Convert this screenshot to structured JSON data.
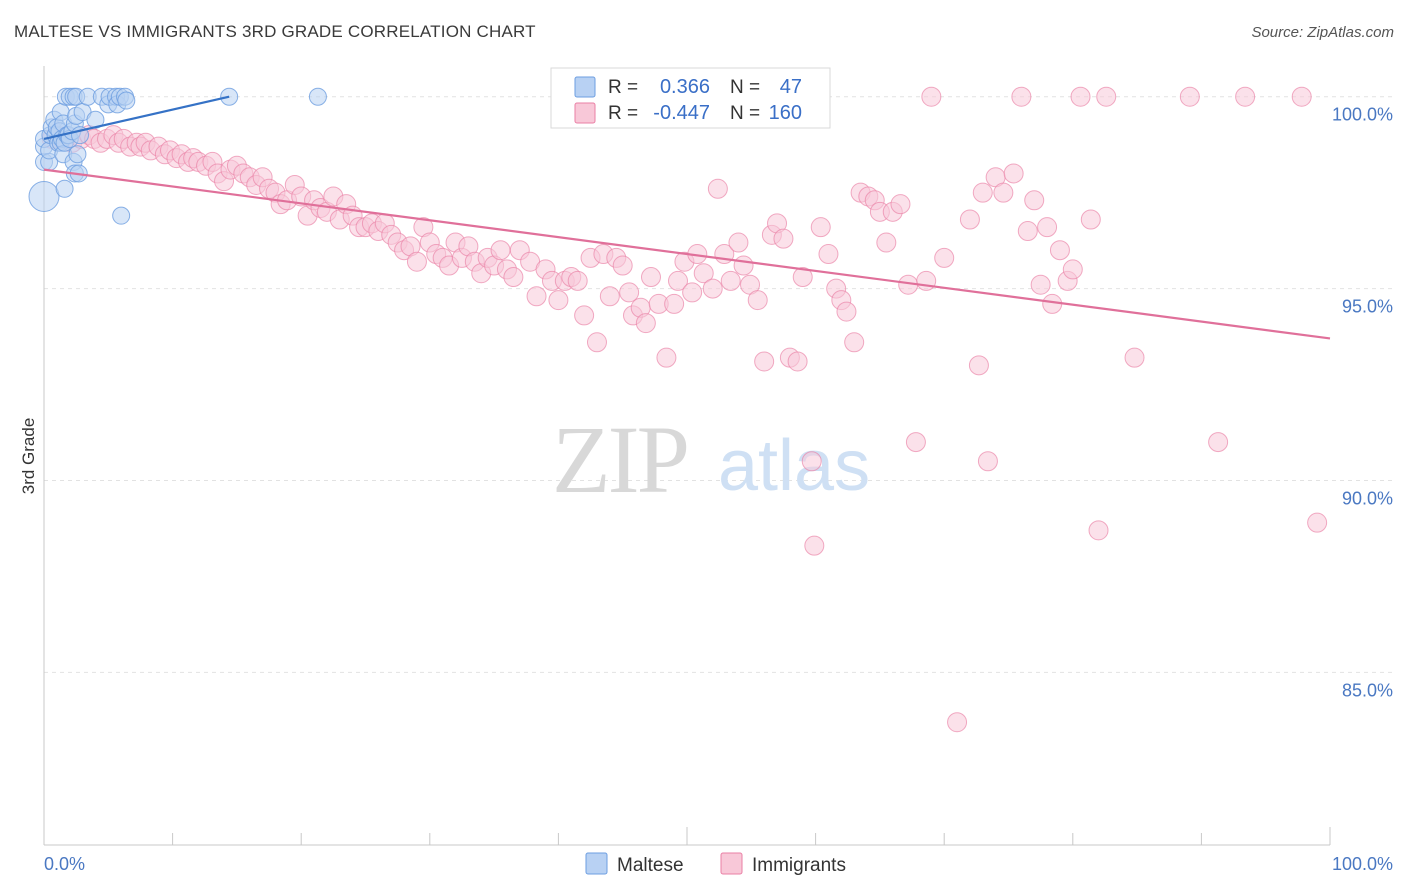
{
  "header": {
    "title": "MALTESE VS IMMIGRANTS 3RD GRADE CORRELATION CHART",
    "source": "Source: ZipAtlas.com"
  },
  "watermark": {
    "zip": "ZIP",
    "atlas": "atlas"
  },
  "colors": {
    "maltese": "#6d9ee0",
    "maltese_fill": "#b8d1f3",
    "immigrants": "#ea7fa5",
    "immigrants_fill": "#f8c8d8",
    "trend_blue": "#3572c6",
    "trend_pink": "#e0709a",
    "tick": "#4a78c2"
  },
  "legend": {
    "r_label": "R =",
    "n_label": "N =",
    "maltese": {
      "r": "0.366",
      "n": "47"
    },
    "immigrants": {
      "r": "-0.447",
      "n": "160"
    }
  },
  "chart_data": {
    "type": "scatter",
    "title": "MALTESE VS IMMIGRANTS 3RD GRADE CORRELATION CHART",
    "xlabel": "",
    "ylabel": "3rd Grade",
    "xlim": [
      0,
      100
    ],
    "ylim": [
      80.5,
      100.8
    ],
    "x_tick_labels": [
      "0.0%",
      "100.0%"
    ],
    "y_ticks": [
      {
        "value": 100,
        "label": "100.0%"
      },
      {
        "value": 95,
        "label": "95.0%"
      },
      {
        "value": 90,
        "label": "90.0%"
      },
      {
        "value": 85,
        "label": "85.0%"
      }
    ],
    "bottom_legend": [
      "Maltese",
      "Immigrants"
    ],
    "series": [
      {
        "name": "Maltese",
        "trend": {
          "x": [
            0,
            14.4
          ],
          "y": [
            98.9,
            100.0
          ]
        },
        "points": [
          [
            0.0,
            97.4,
            2
          ],
          [
            0.0,
            98.3,
            1
          ],
          [
            0.0,
            98.7,
            1
          ],
          [
            0.0,
            98.9,
            1
          ],
          [
            0.4,
            98.3,
            1
          ],
          [
            0.4,
            98.6,
            1
          ],
          [
            0.5,
            99.0,
            1
          ],
          [
            0.6,
            99.2,
            1
          ],
          [
            0.8,
            99.4,
            1
          ],
          [
            0.9,
            99.0,
            1
          ],
          [
            1.0,
            99.2,
            1
          ],
          [
            1.1,
            98.8,
            1
          ],
          [
            1.2,
            99.1,
            1
          ],
          [
            1.3,
            98.8,
            1
          ],
          [
            1.3,
            99.6,
            1
          ],
          [
            1.4,
            98.9,
            1
          ],
          [
            1.5,
            99.3,
            1
          ],
          [
            1.5,
            98.5,
            1
          ],
          [
            1.6,
            97.6,
            1
          ],
          [
            1.6,
            98.8,
            1
          ],
          [
            1.7,
            100.0,
            1
          ],
          [
            1.8,
            99.0,
            1
          ],
          [
            1.9,
            99.0,
            1
          ],
          [
            2.0,
            98.9,
            1
          ],
          [
            2.0,
            100.0,
            1
          ],
          [
            2.2,
            99.1,
            1
          ],
          [
            2.3,
            100.0,
            1
          ],
          [
            2.3,
            98.3,
            1
          ],
          [
            2.4,
            98.0,
            1
          ],
          [
            2.4,
            99.3,
            1
          ],
          [
            2.5,
            99.5,
            1
          ],
          [
            2.5,
            100.0,
            1
          ],
          [
            2.6,
            98.5,
            1
          ],
          [
            2.7,
            98.0,
            1
          ],
          [
            2.8,
            99.0,
            1
          ],
          [
            3.0,
            99.6,
            1
          ],
          [
            3.4,
            100.0,
            1
          ],
          [
            4.0,
            99.4,
            1
          ],
          [
            4.5,
            100.0,
            1
          ],
          [
            5.0,
            99.8,
            1
          ],
          [
            5.1,
            100.0,
            1
          ],
          [
            5.6,
            100.0,
            1
          ],
          [
            5.7,
            99.8,
            1
          ],
          [
            5.9,
            100.0,
            1
          ],
          [
            6.0,
            96.9,
            1
          ],
          [
            6.3,
            100.0,
            1
          ],
          [
            6.4,
            99.9,
            1
          ],
          [
            14.4,
            100.0,
            1
          ],
          [
            21.3,
            100.0,
            1
          ]
        ]
      },
      {
        "name": "Immigrants",
        "trend": {
          "x": [
            0,
            100
          ],
          "y": [
            98.1,
            93.7
          ]
        },
        "points": [
          [
            0.6,
            98.9
          ],
          [
            1.0,
            99.0
          ],
          [
            1.3,
            98.9
          ],
          [
            1.7,
            98.9
          ],
          [
            2.2,
            98.8
          ],
          [
            2.9,
            98.9
          ],
          [
            3.5,
            99.0
          ],
          [
            3.9,
            98.9
          ],
          [
            4.4,
            98.8
          ],
          [
            4.9,
            98.9
          ],
          [
            5.4,
            99.0
          ],
          [
            5.8,
            98.8
          ],
          [
            6.2,
            98.9
          ],
          [
            6.7,
            98.7
          ],
          [
            7.2,
            98.8
          ],
          [
            7.5,
            98.7
          ],
          [
            7.9,
            98.8
          ],
          [
            8.3,
            98.6
          ],
          [
            8.9,
            98.7
          ],
          [
            9.4,
            98.5
          ],
          [
            9.8,
            98.6
          ],
          [
            10.3,
            98.4
          ],
          [
            10.7,
            98.5
          ],
          [
            11.2,
            98.3
          ],
          [
            11.6,
            98.4
          ],
          [
            12.0,
            98.3
          ],
          [
            12.6,
            98.2
          ],
          [
            13.1,
            98.3
          ],
          [
            13.5,
            98.0
          ],
          [
            14.0,
            97.8
          ],
          [
            14.5,
            98.1
          ],
          [
            15.0,
            98.2
          ],
          [
            15.5,
            98.0
          ],
          [
            16.0,
            97.9
          ],
          [
            16.5,
            97.7
          ],
          [
            17.0,
            97.9
          ],
          [
            17.5,
            97.6
          ],
          [
            18.0,
            97.5
          ],
          [
            18.4,
            97.2
          ],
          [
            18.9,
            97.3
          ],
          [
            19.5,
            97.7
          ],
          [
            20.0,
            97.4
          ],
          [
            20.5,
            96.9
          ],
          [
            21.0,
            97.3
          ],
          [
            21.5,
            97.1
          ],
          [
            22.0,
            97.0
          ],
          [
            22.5,
            97.4
          ],
          [
            23.0,
            96.8
          ],
          [
            23.5,
            97.2
          ],
          [
            24.0,
            96.9
          ],
          [
            24.5,
            96.6
          ],
          [
            25.0,
            96.6
          ],
          [
            25.5,
            96.7
          ],
          [
            26.0,
            96.5
          ],
          [
            26.5,
            96.7
          ],
          [
            27.0,
            96.4
          ],
          [
            27.5,
            96.2
          ],
          [
            28.0,
            96.0
          ],
          [
            28.5,
            96.1
          ],
          [
            29.0,
            95.7
          ],
          [
            29.5,
            96.6
          ],
          [
            30.0,
            96.2
          ],
          [
            30.5,
            95.9
          ],
          [
            31.0,
            95.8
          ],
          [
            31.5,
            95.6
          ],
          [
            32.0,
            96.2
          ],
          [
            32.5,
            95.8
          ],
          [
            33.0,
            96.1
          ],
          [
            33.5,
            95.7
          ],
          [
            34.0,
            95.4
          ],
          [
            34.5,
            95.8
          ],
          [
            35.0,
            95.6
          ],
          [
            35.5,
            96.0
          ],
          [
            36.0,
            95.5
          ],
          [
            36.5,
            95.3
          ],
          [
            37.0,
            96.0
          ],
          [
            37.8,
            95.7
          ],
          [
            38.3,
            94.8
          ],
          [
            39.0,
            95.5
          ],
          [
            39.5,
            95.2
          ],
          [
            40.0,
            94.7
          ],
          [
            40.5,
            95.2
          ],
          [
            41.0,
            95.3
          ],
          [
            41.5,
            95.2
          ],
          [
            42.0,
            94.3
          ],
          [
            42.5,
            95.8
          ],
          [
            43.0,
            93.6
          ],
          [
            43.5,
            95.9
          ],
          [
            44.0,
            94.8
          ],
          [
            44.5,
            95.8
          ],
          [
            45.0,
            95.6
          ],
          [
            45.5,
            94.9
          ],
          [
            45.8,
            94.3
          ],
          [
            46.4,
            94.5
          ],
          [
            46.8,
            94.1
          ],
          [
            47.2,
            95.3
          ],
          [
            47.8,
            94.6
          ],
          [
            48.4,
            93.2
          ],
          [
            49.0,
            94.6
          ],
          [
            49.3,
            95.2
          ],
          [
            49.8,
            95.7
          ],
          [
            50.4,
            94.9
          ],
          [
            50.8,
            95.9
          ],
          [
            51.3,
            95.4
          ],
          [
            52.0,
            95.0
          ],
          [
            52.4,
            97.6
          ],
          [
            52.9,
            95.9
          ],
          [
            53.4,
            95.2
          ],
          [
            54.0,
            96.2
          ],
          [
            54.4,
            95.6
          ],
          [
            54.9,
            95.1
          ],
          [
            55.5,
            94.7
          ],
          [
            56.0,
            93.1
          ],
          [
            56.6,
            96.4
          ],
          [
            57.0,
            96.7
          ],
          [
            57.5,
            96.3
          ],
          [
            58.0,
            93.2
          ],
          [
            58.6,
            93.1
          ],
          [
            59.0,
            95.3
          ],
          [
            59.7,
            90.5
          ],
          [
            59.9,
            88.3
          ],
          [
            60.4,
            96.6
          ],
          [
            61.0,
            95.9
          ],
          [
            61.6,
            95.0
          ],
          [
            62.0,
            94.7
          ],
          [
            62.4,
            94.4
          ],
          [
            63.0,
            93.6
          ],
          [
            63.5,
            97.5
          ],
          [
            64.1,
            97.4
          ],
          [
            64.6,
            97.3
          ],
          [
            65.0,
            97.0
          ],
          [
            65.5,
            96.2
          ],
          [
            66.0,
            97.0
          ],
          [
            66.6,
            97.2
          ],
          [
            67.2,
            95.1
          ],
          [
            67.8,
            91.0
          ],
          [
            68.6,
            95.2
          ],
          [
            69.0,
            100.0
          ],
          [
            70.0,
            95.8
          ],
          [
            71.0,
            83.7
          ],
          [
            72.0,
            96.8
          ],
          [
            72.7,
            93.0
          ],
          [
            73.0,
            97.5
          ],
          [
            73.4,
            90.5
          ],
          [
            74.0,
            97.9
          ],
          [
            74.6,
            97.5
          ],
          [
            75.4,
            98.0
          ],
          [
            76.0,
            100.0
          ],
          [
            76.5,
            96.5
          ],
          [
            77.0,
            97.3
          ],
          [
            77.5,
            95.1
          ],
          [
            78.0,
            96.6
          ],
          [
            78.4,
            94.6
          ],
          [
            79.0,
            96.0
          ],
          [
            79.6,
            95.2
          ],
          [
            80.0,
            95.5
          ],
          [
            80.6,
            100.0
          ],
          [
            81.4,
            96.8
          ],
          [
            82.0,
            88.7
          ],
          [
            82.6,
            100.0
          ],
          [
            84.8,
            93.2
          ],
          [
            89.1,
            100.0
          ],
          [
            91.3,
            91.0
          ],
          [
            93.4,
            100.0
          ],
          [
            97.8,
            100.0
          ],
          [
            99.0,
            88.9
          ]
        ]
      }
    ]
  }
}
